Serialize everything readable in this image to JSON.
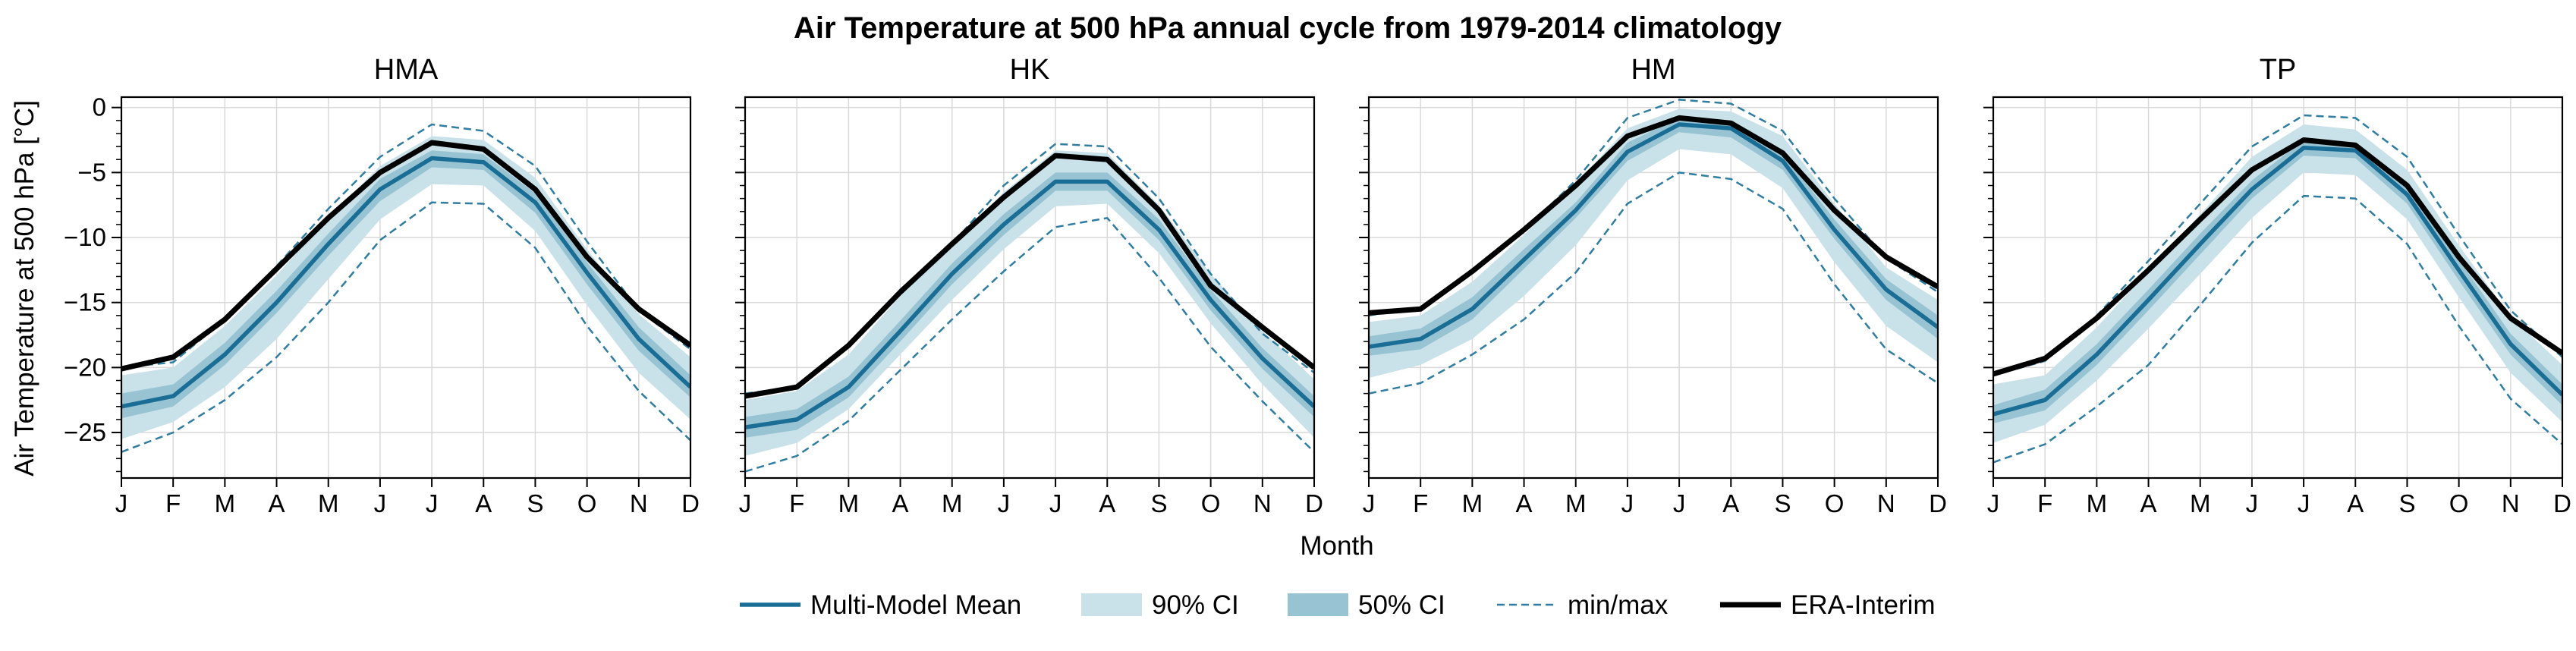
{
  "chart_data": {
    "type": "line",
    "title": "Air Temperature at 500 hPa annual cycle from 1979-2014 climatology",
    "xlabel": "Month",
    "ylabel": "Air Temperature at 500 hPa [°C]",
    "x": [
      "J",
      "F",
      "M",
      "A",
      "M",
      "J",
      "J",
      "A",
      "S",
      "O",
      "N",
      "D"
    ],
    "ylim": [
      -28.5,
      0.8
    ],
    "yticks": [
      0,
      -5,
      -10,
      -15,
      -20,
      -25
    ],
    "grid": true,
    "legend_position": "bottom",
    "colors": {
      "mean": "#1a6e96",
      "ci90": "#c9e1e8",
      "ci50": "#97c3d3",
      "minmax": "#2f7da1",
      "era": "#000000"
    },
    "legend": [
      {
        "key": "mean",
        "label": "Multi-Model Mean"
      },
      {
        "key": "ci90",
        "label": "90% CI"
      },
      {
        "key": "ci50",
        "label": "50% CI"
      },
      {
        "key": "minmax",
        "label": "min/max"
      },
      {
        "key": "era",
        "label": "ERA-Interim"
      }
    ],
    "panels": [
      {
        "title": "HMA",
        "mean": [
          -23.0,
          -22.2,
          -19.0,
          -15.0,
          -10.5,
          -6.3,
          -3.9,
          -4.2,
          -7.3,
          -12.7,
          -17.8,
          -21.5
        ],
        "ci50_lo": [
          -23.9,
          -23.0,
          -19.8,
          -15.8,
          -11.4,
          -7.2,
          -4.6,
          -4.8,
          -8.1,
          -13.6,
          -18.7,
          -22.3
        ],
        "ci50_hi": [
          -22.0,
          -21.3,
          -18.1,
          -14.1,
          -9.7,
          -5.5,
          -3.3,
          -3.6,
          -6.6,
          -11.9,
          -16.9,
          -20.6
        ],
        "ci90_lo": [
          -25.5,
          -24.2,
          -21.5,
          -17.8,
          -13.2,
          -8.6,
          -5.9,
          -6.0,
          -9.5,
          -15.2,
          -20.4,
          -24.0
        ],
        "ci90_hi": [
          -20.6,
          -20.0,
          -16.8,
          -12.9,
          -8.5,
          -4.5,
          -2.2,
          -2.5,
          -5.4,
          -10.9,
          -15.9,
          -19.2
        ],
        "min": [
          -26.5,
          -25.0,
          -22.5,
          -19.2,
          -15.0,
          -10.2,
          -7.3,
          -7.4,
          -10.8,
          -16.8,
          -21.8,
          -25.6
        ],
        "max": [
          -20.0,
          -19.6,
          -16.3,
          -12.2,
          -7.8,
          -3.8,
          -1.3,
          -1.8,
          -4.5,
          -10.3,
          -15.6,
          -18.6
        ],
        "era": [
          -20.1,
          -19.2,
          -16.3,
          -12.4,
          -8.5,
          -5.0,
          -2.7,
          -3.2,
          -6.3,
          -11.5,
          -15.5,
          -18.3
        ]
      },
      {
        "title": "HK",
        "mean": [
          -24.6,
          -24.0,
          -21.5,
          -17.2,
          -12.8,
          -9.0,
          -5.7,
          -5.7,
          -9.4,
          -14.8,
          -19.3,
          -23.0
        ],
        "ci50_lo": [
          -25.4,
          -24.8,
          -22.3,
          -18.0,
          -13.6,
          -9.8,
          -6.4,
          -6.4,
          -10.2,
          -15.6,
          -20.1,
          -23.8
        ],
        "ci50_hi": [
          -23.8,
          -23.2,
          -20.7,
          -16.4,
          -12.0,
          -8.2,
          -5.0,
          -5.0,
          -8.6,
          -14.0,
          -18.5,
          -22.2
        ],
        "ci90_lo": [
          -26.8,
          -25.8,
          -23.2,
          -19.0,
          -14.8,
          -10.9,
          -7.6,
          -7.4,
          -11.2,
          -16.6,
          -21.3,
          -25.4
        ],
        "ci90_hi": [
          -22.5,
          -21.8,
          -19.0,
          -14.5,
          -10.5,
          -6.5,
          -3.3,
          -3.5,
          -7.5,
          -12.8,
          -17.2,
          -20.9
        ],
        "min": [
          -28.0,
          -26.8,
          -24.1,
          -20.2,
          -16.3,
          -12.6,
          -9.2,
          -8.5,
          -13.1,
          -18.4,
          -22.6,
          -26.5
        ],
        "max": [
          -22.0,
          -21.5,
          -18.3,
          -14.0,
          -10.5,
          -6.0,
          -2.8,
          -3.0,
          -7.0,
          -12.8,
          -17.4,
          -20.4
        ],
        "era": [
          -22.2,
          -21.5,
          -18.3,
          -14.2,
          -10.5,
          -6.9,
          -3.7,
          -4.0,
          -7.9,
          -13.7,
          -16.9,
          -20.0
        ]
      },
      {
        "title": "HM",
        "mean": [
          -18.4,
          -17.8,
          -15.5,
          -11.7,
          -7.9,
          -3.4,
          -1.3,
          -1.6,
          -4.1,
          -9.4,
          -14.0,
          -16.9
        ],
        "ci50_lo": [
          -19.1,
          -18.6,
          -16.3,
          -12.4,
          -8.5,
          -4.1,
          -1.9,
          -2.3,
          -4.8,
          -10.1,
          -14.8,
          -17.8
        ],
        "ci50_hi": [
          -17.6,
          -17.0,
          -14.6,
          -10.9,
          -7.3,
          -2.7,
          -0.8,
          -1.0,
          -3.5,
          -8.6,
          -13.2,
          -16.0
        ],
        "ci90_lo": [
          -20.8,
          -19.8,
          -17.8,
          -14.5,
          -10.6,
          -5.6,
          -3.2,
          -3.6,
          -6.2,
          -11.9,
          -16.8,
          -19.6
        ],
        "ci90_hi": [
          -16.5,
          -16.0,
          -13.4,
          -9.8,
          -5.8,
          -1.6,
          -0.1,
          -0.3,
          -2.2,
          -7.4,
          -12.3,
          -14.8
        ],
        "min": [
          -22.0,
          -21.2,
          -19.0,
          -16.3,
          -12.7,
          -7.4,
          -5.0,
          -5.5,
          -7.8,
          -13.6,
          -18.6,
          -21.2
        ],
        "max": [
          -16.0,
          -15.4,
          -12.7,
          -9.5,
          -5.6,
          -0.8,
          0.6,
          0.3,
          -1.8,
          -7.0,
          -11.6,
          -14.2
        ],
        "era": [
          -15.8,
          -15.5,
          -12.6,
          -9.4,
          -6.0,
          -2.2,
          -0.8,
          -1.2,
          -3.5,
          -7.9,
          -11.5,
          -13.8
        ]
      },
      {
        "title": "TP",
        "mean": [
          -23.6,
          -22.5,
          -19.0,
          -14.8,
          -10.5,
          -6.3,
          -3.1,
          -3.3,
          -6.7,
          -12.5,
          -18.2,
          -22.1
        ],
        "ci50_lo": [
          -24.3,
          -23.3,
          -19.8,
          -15.6,
          -11.3,
          -7.0,
          -3.7,
          -3.9,
          -7.4,
          -13.3,
          -19.0,
          -22.9
        ],
        "ci50_hi": [
          -22.9,
          -21.7,
          -18.2,
          -14.0,
          -9.7,
          -5.6,
          -2.5,
          -2.7,
          -6.0,
          -11.7,
          -17.4,
          -21.3
        ],
        "ci90_lo": [
          -25.8,
          -24.4,
          -21.0,
          -17.0,
          -12.8,
          -8.5,
          -5.0,
          -5.2,
          -8.6,
          -14.6,
          -20.4,
          -24.2
        ],
        "ci90_hi": [
          -21.3,
          -20.6,
          -16.9,
          -12.6,
          -8.2,
          -3.8,
          -1.3,
          -1.7,
          -4.8,
          -10.6,
          -16.1,
          -19.8
        ],
        "min": [
          -27.3,
          -25.9,
          -23.0,
          -19.8,
          -15.2,
          -10.4,
          -6.8,
          -7.0,
          -10.5,
          -16.8,
          -22.4,
          -25.9
        ],
        "max": [
          -20.6,
          -19.5,
          -16.0,
          -11.8,
          -7.4,
          -3.0,
          -0.6,
          -0.8,
          -3.8,
          -9.8,
          -15.6,
          -19.2
        ],
        "era": [
          -20.5,
          -19.3,
          -16.2,
          -12.5,
          -8.6,
          -4.8,
          -2.5,
          -2.9,
          -6.0,
          -11.5,
          -16.2,
          -18.9
        ]
      }
    ]
  }
}
